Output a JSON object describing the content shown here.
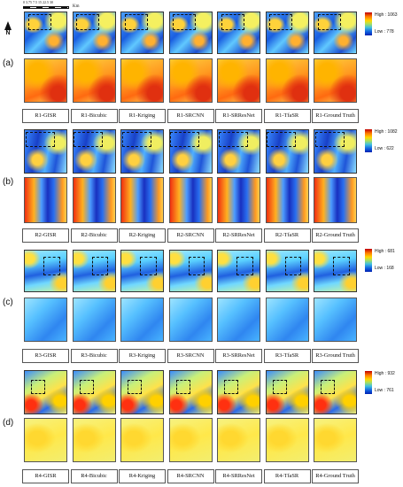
{
  "scale_bar": {
    "ticks": "0  3.75  7.5   15   22.5   30",
    "unit": "Km"
  },
  "north_arrow": {
    "label": "N"
  },
  "panels": [
    {
      "label": "(a)",
      "legend": {
        "high": "High : 1063",
        "low": "Low : 778"
      },
      "captions": [
        "R1-GISR",
        "R1-Bicubic",
        "R1-Kriging",
        "R1-SRCNN",
        "R1-SRResNet",
        "R1-TfaSR",
        "R1-Ground Truth"
      ]
    },
    {
      "label": "(b)",
      "legend": {
        "high": "High : 1082",
        "low": "Low : 622"
      },
      "captions": [
        "R2-GISR",
        "R2-Bicubic",
        "R2-Kriging",
        "R2-SRCNN",
        "R2-SRResNet",
        "R2-TfaSR",
        "R2-Ground Truth"
      ]
    },
    {
      "label": "(c)",
      "legend": {
        "high": "High : 681",
        "low": "Low : 168"
      },
      "captions": [
        "R3-GISR",
        "R3-Bicubic",
        "R3-Kriging",
        "R3-SRCNN",
        "R3-SRResNet",
        "R3-TfaSR",
        "R3-Ground Truth"
      ]
    },
    {
      "label": "(d)",
      "legend": {
        "high": "High : 932",
        "low": "Low : 761"
      },
      "captions": [
        "R4-GISR",
        "R4-Bicubic",
        "R4-Kriging",
        "R4-SRCNN",
        "R4-SRResNet",
        "R4-TfaSR",
        "R4-Ground Truth"
      ]
    }
  ]
}
